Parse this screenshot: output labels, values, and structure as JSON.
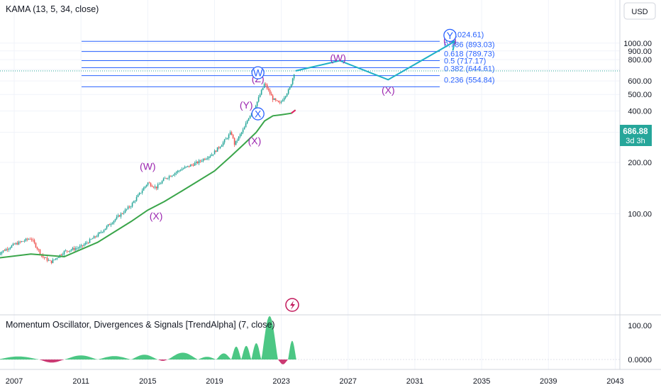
{
  "header": {
    "main_indicator": "KAMA (13, 5, 34, close)",
    "sub_indicator": "Momentum Oscillator, Divergences & Signals [TrendAlpha] (7, close)",
    "currency_button": "USD"
  },
  "price_label": {
    "value": "686.88",
    "countdown": "3d 3h",
    "color": "#26a69a"
  },
  "colors": {
    "fib_line": "#2962ff",
    "projection": "#1eb0c4",
    "kama": "#3aa54a",
    "wave_purple": "#9c27b0",
    "wave_blue": "#2962ff",
    "candle_up": "#26a69a",
    "candle_down": "#ef5350",
    "osc_pos": "#2dbd6e",
    "osc_neg": "#c2185b"
  },
  "chart_data": [
    {
      "type": "line",
      "title": "KAMA (13, 5, 34, close)",
      "price_scale": "log",
      "y_ticks": [
        100,
        200,
        300,
        400,
        500,
        600,
        700,
        800,
        900,
        1000
      ],
      "y_tick_labels": [
        "100.00",
        "200.00",
        "300.00",
        "400.00",
        "500.00",
        "600.00",
        "700.00",
        "800.00",
        "900.00",
        "1000.00"
      ],
      "x_ticks": [
        2007,
        2011,
        2015,
        2019,
        2023,
        2027,
        2031,
        2035,
        2039,
        2043
      ],
      "fib_levels": [
        {
          "label": "1 (1024.61)",
          "ratio": 1,
          "price": 1024.61
        },
        {
          "label": "0.786 (893.03)",
          "ratio": 0.786,
          "price": 893.03
        },
        {
          "label": "0.618 (789.73)",
          "ratio": 0.618,
          "price": 789.73
        },
        {
          "label": "0.5 (717.17)",
          "ratio": 0.5,
          "price": 717.17
        },
        {
          "label": "0.382 (644.61)",
          "ratio": 0.382,
          "price": 644.61
        },
        {
          "label": "0.236 (554.84)",
          "ratio": 0.236,
          "price": 554.84
        }
      ],
      "price_series": {
        "x": [
          2006.0,
          2007.0,
          2008.0,
          2008.7,
          2009.2,
          2010.0,
          2011.0,
          2012.0,
          2013.0,
          2014.0,
          2015.0,
          2015.5,
          2016.0,
          2017.0,
          2018.0,
          2018.9,
          2019.5,
          2020.0,
          2020.2,
          2020.8,
          2021.0,
          2021.5,
          2022.0,
          2022.5,
          2022.9,
          2023.2,
          2023.5,
          2023.8
        ],
        "y": [
          58,
          66,
          72,
          56,
          52,
          60,
          64,
          75,
          92,
          112,
          152,
          142,
          160,
          182,
          200,
          225,
          260,
          300,
          255,
          320,
          360,
          440,
          580,
          470,
          440,
          490,
          540,
          686.88
        ]
      },
      "kama_series": {
        "x": [
          2006.0,
          2008.0,
          2010.0,
          2012.0,
          2014.0,
          2015.0,
          2016.0,
          2017.0,
          2018.0,
          2019.0,
          2020.0,
          2020.8,
          2021.5,
          2022.0,
          2022.5,
          2023.0,
          2023.6,
          2023.85
        ],
        "y": [
          55,
          58,
          56,
          68,
          90,
          105,
          118,
          135,
          155,
          178,
          218,
          258,
          300,
          350,
          375,
          380,
          388,
          405
        ]
      },
      "projection": {
        "x": [
          2023.85,
          2026.5,
          2029.4,
          2033.4
        ],
        "y": [
          686.88,
          789.73,
          610,
          1024.61
        ]
      },
      "wave_labels": [
        {
          "text": "(W)",
          "x": 2015.0,
          "y": 190,
          "style": "purple"
        },
        {
          "text": "(X)",
          "x": 2015.5,
          "y": 97,
          "style": "purple"
        },
        {
          "text": "(Y)",
          "x": 2020.9,
          "y": 435,
          "style": "purple"
        },
        {
          "text": "(X)",
          "x": 2021.4,
          "y": 268,
          "style": "purple"
        },
        {
          "text": "(Z)",
          "x": 2021.6,
          "y": 620,
          "style": "purple"
        },
        {
          "text": "W",
          "x": 2021.6,
          "y": 670,
          "style": "circle"
        },
        {
          "text": "X",
          "x": 2021.6,
          "y": 385,
          "style": "circle"
        },
        {
          "text": "(W)",
          "x": 2026.4,
          "y": 820,
          "style": "purple"
        },
        {
          "text": "(X)",
          "x": 2029.4,
          "y": 530,
          "style": "purple"
        },
        {
          "text": "(Y)",
          "x": 2033.1,
          "y": 1045,
          "style": "purple"
        },
        {
          "text": "Y",
          "x": 2033.1,
          "y": 1110,
          "style": "circle"
        }
      ]
    },
    {
      "type": "bar",
      "title": "Momentum Oscillator, Divergences & Signals [TrendAlpha] (7, close)",
      "y_ticks": [
        0,
        100
      ],
      "y_tick_labels": [
        "0.0000",
        "100.00"
      ],
      "waves": [
        {
          "from": 2006.0,
          "to": 2008.5,
          "peak": 9
        },
        {
          "from": 2008.5,
          "to": 2010.0,
          "peak": -9
        },
        {
          "from": 2010.0,
          "to": 2012.0,
          "peak": 12
        },
        {
          "from": 2012.0,
          "to": 2014.0,
          "peak": 10
        },
        {
          "from": 2014.0,
          "to": 2015.6,
          "peak": 14
        },
        {
          "from": 2015.6,
          "to": 2016.2,
          "peak": -4
        },
        {
          "from": 2016.2,
          "to": 2018.0,
          "peak": 20
        },
        {
          "from": 2018.0,
          "to": 2019.1,
          "peak": 8
        },
        {
          "from": 2019.1,
          "to": 2020.0,
          "peak": 18
        },
        {
          "from": 2020.0,
          "to": 2020.6,
          "peak": 38
        },
        {
          "from": 2020.6,
          "to": 2021.2,
          "peak": 40
        },
        {
          "from": 2021.2,
          "to": 2021.8,
          "peak": 48
        },
        {
          "from": 2021.8,
          "to": 2022.8,
          "peak": 128
        },
        {
          "from": 2022.8,
          "to": 2023.4,
          "peak": -14
        },
        {
          "from": 2023.4,
          "to": 2023.9,
          "peak": 55
        }
      ]
    }
  ]
}
